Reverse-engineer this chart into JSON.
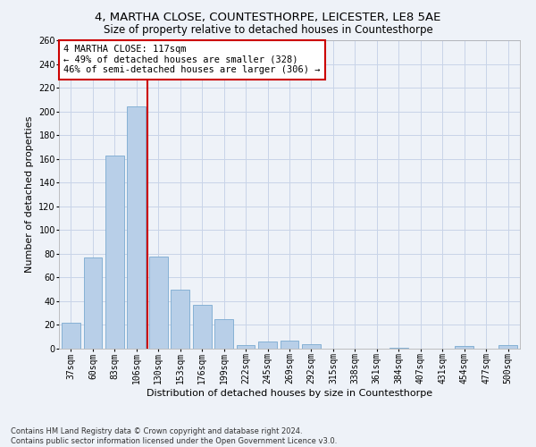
{
  "title1": "4, MARTHA CLOSE, COUNTESTHORPE, LEICESTER, LE8 5AE",
  "title2": "Size of property relative to detached houses in Countesthorpe",
  "xlabel": "Distribution of detached houses by size in Countesthorpe",
  "ylabel": "Number of detached properties",
  "footnote": "Contains HM Land Registry data © Crown copyright and database right 2024.\nContains public sector information licensed under the Open Government Licence v3.0.",
  "bar_labels": [
    "37sqm",
    "60sqm",
    "83sqm",
    "106sqm",
    "130sqm",
    "153sqm",
    "176sqm",
    "199sqm",
    "222sqm",
    "245sqm",
    "269sqm",
    "292sqm",
    "315sqm",
    "338sqm",
    "361sqm",
    "384sqm",
    "407sqm",
    "431sqm",
    "454sqm",
    "477sqm",
    "500sqm"
  ],
  "bar_values": [
    22,
    77,
    163,
    204,
    78,
    50,
    37,
    25,
    3,
    6,
    7,
    4,
    0,
    0,
    0,
    1,
    0,
    0,
    2,
    0,
    3
  ],
  "bar_color": "#b8cfe8",
  "bar_edge_color": "#7aaad0",
  "annotation_text_line1": "4 MARTHA CLOSE: 117sqm",
  "annotation_text_line2": "← 49% of detached houses are smaller (328)",
  "annotation_text_line3": "46% of semi-detached houses are larger (306) →",
  "annotation_box_color": "#ffffff",
  "annotation_border_color": "#cc0000",
  "vline_color": "#cc0000",
  "grid_color": "#c8d4e8",
  "background_color": "#eef2f8",
  "ylim": [
    0,
    260
  ],
  "yticks": [
    0,
    20,
    40,
    60,
    80,
    100,
    120,
    140,
    160,
    180,
    200,
    220,
    240,
    260
  ],
  "title_fontsize": 9.5,
  "subtitle_fontsize": 8.5,
  "xlabel_fontsize": 8,
  "ylabel_fontsize": 8,
  "tick_fontsize": 7,
  "annotation_fontsize": 7.5,
  "footnote_fontsize": 6,
  "vline_x": 3.48
}
